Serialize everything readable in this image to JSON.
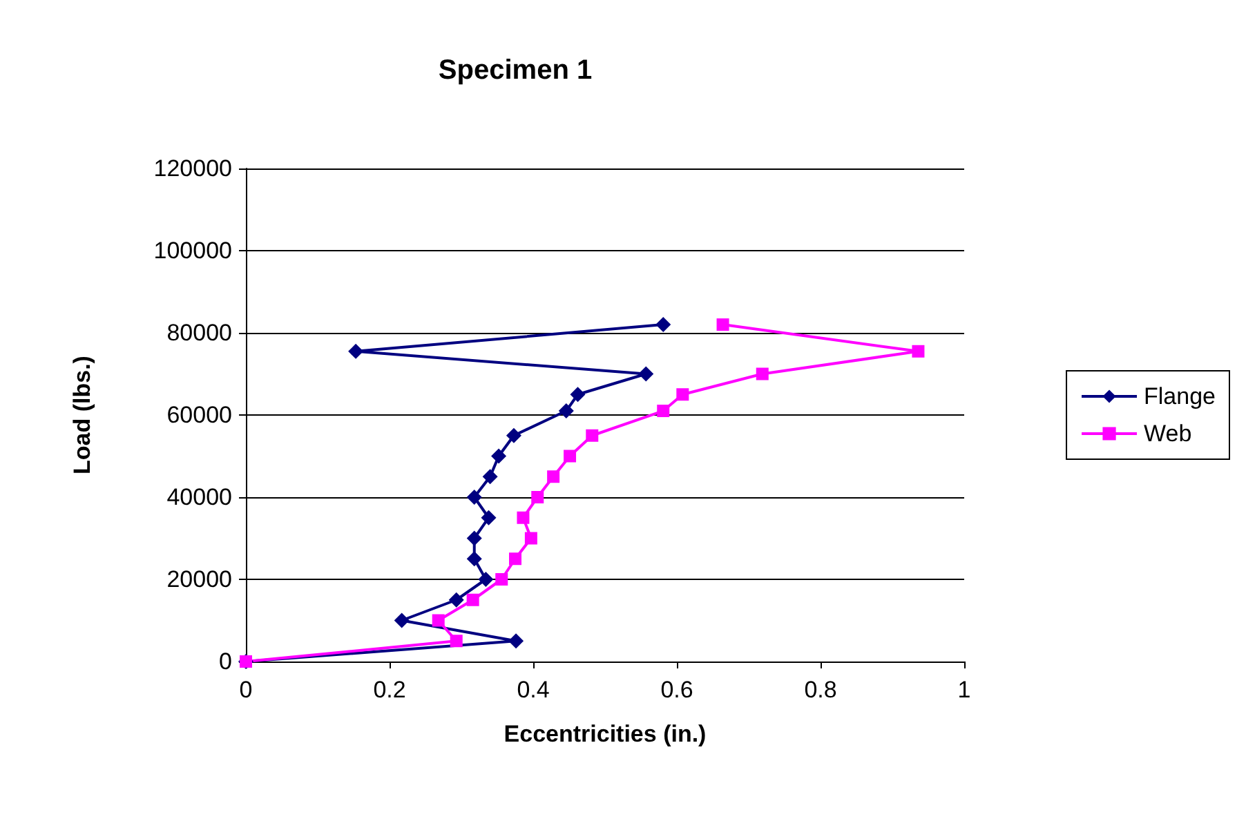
{
  "chart_data": {
    "type": "line",
    "title": "Specimen 1",
    "xlabel": "Eccentricities (in.)",
    "ylabel": "Load (lbs.)",
    "xlim": [
      0,
      1
    ],
    "xticks": [
      0,
      0.2,
      0.4,
      0.6,
      0.8,
      1
    ],
    "ylim": [
      0,
      120000
    ],
    "yticks": [
      0,
      20000,
      40000,
      60000,
      80000,
      100000,
      120000
    ],
    "grid": "y",
    "legend": "right",
    "series": [
      {
        "name": "Flange",
        "color": "#000080",
        "marker": "diamond",
        "x": [
          0,
          0.376,
          0.217,
          0.293,
          0.334,
          0.318,
          0.318,
          0.338,
          0.318,
          0.34,
          0.352,
          0.373,
          0.446,
          0.462,
          0.557,
          0.153,
          0.581
        ],
        "values": [
          0,
          5000,
          10000,
          15000,
          20000,
          25000,
          30000,
          35000,
          40000,
          45000,
          50000,
          55000,
          61000,
          65000,
          70000,
          75500,
          82000
        ]
      },
      {
        "name": "Web",
        "color": "#ff00ff",
        "marker": "square",
        "x": [
          0,
          0.293,
          0.268,
          0.316,
          0.356,
          0.375,
          0.397,
          0.386,
          0.406,
          0.428,
          0.451,
          0.482,
          0.581,
          0.608,
          0.719,
          0.936,
          0.664
        ],
        "values": [
          0,
          5000,
          10000,
          15000,
          20000,
          25000,
          30000,
          35000,
          40000,
          45000,
          50000,
          55000,
          61000,
          65000,
          70000,
          75500,
          82000
        ]
      }
    ]
  }
}
